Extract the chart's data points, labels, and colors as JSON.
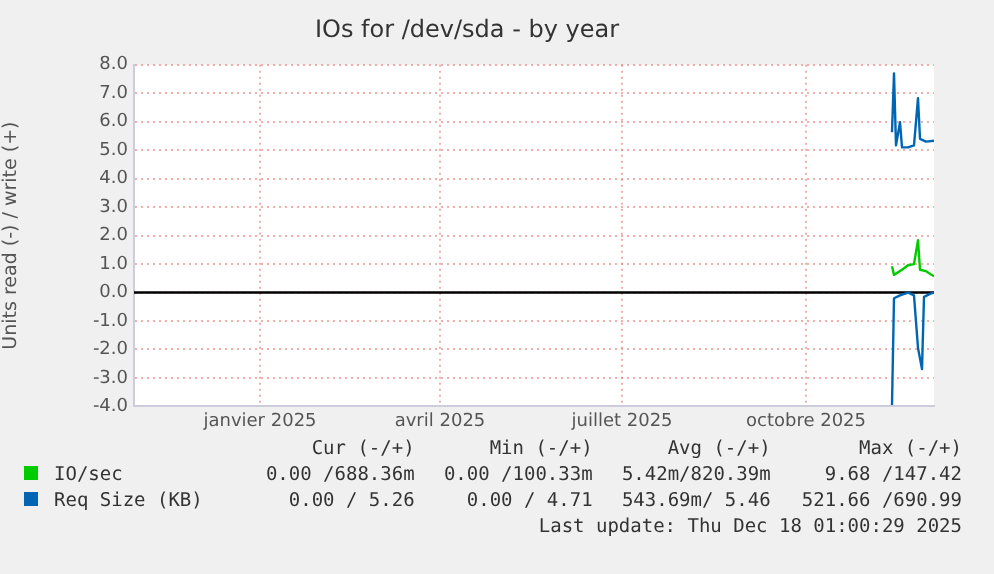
{
  "chart_data": {
    "type": "line",
    "title": "IOs for /dev/sda - by year",
    "ylabel": "Units read (-) / write (+)",
    "xlim": [
      "2024-11-13",
      "2025-12-18"
    ],
    "xticks": [
      {
        "value": "2025-01-15",
        "label": "janvier 2025"
      },
      {
        "value": "2025-04-15",
        "label": "avril 2025"
      },
      {
        "value": "2025-07-15",
        "label": "juillet 2025"
      },
      {
        "value": "2025-10-15",
        "label": "octobre 2025"
      }
    ],
    "ylim": [
      -4,
      8
    ],
    "yticks": [
      {
        "value": -4,
        "label": "-4.0"
      },
      {
        "value": -3,
        "label": "-3.0"
      },
      {
        "value": -2,
        "label": "-2.0"
      },
      {
        "value": -1,
        "label": "-1.0"
      },
      {
        "value": 0,
        "label": "0.0"
      },
      {
        "value": 1,
        "label": "1.0"
      },
      {
        "value": 2,
        "label": "2.0"
      },
      {
        "value": 3,
        "label": "3.0"
      },
      {
        "value": 4,
        "label": "4.0"
      },
      {
        "value": 5,
        "label": "5.0"
      },
      {
        "value": 6,
        "label": "6.0"
      },
      {
        "value": 7,
        "label": "7.0"
      },
      {
        "value": 8,
        "label": "8.0"
      }
    ],
    "grid": true,
    "legend": "bottom",
    "marker": "none",
    "line_style": "solid",
    "ref_lines": [
      {
        "axis": "y",
        "value": 0,
        "color": "#000000"
      }
    ],
    "series": [
      {
        "name": "IO/sec",
        "color": "#00cc00",
        "x": [
          "2025-11-27",
          "2025-11-28",
          "2025-12-02",
          "2025-12-05",
          "2025-12-08",
          "2025-12-10",
          "2025-12-11",
          "2025-12-14",
          "2025-12-18"
        ],
        "values": [
          0.92,
          0.62,
          0.8,
          0.96,
          1.0,
          1.84,
          0.8,
          0.75,
          0.57
        ]
      },
      {
        "name": "Req Size (KB)",
        "color": "#0066b3",
        "x": [
          "2025-11-27",
          "2025-11-28",
          "2025-11-29",
          "2025-12-01",
          "2025-12-02",
          "2025-12-05",
          "2025-12-08",
          "2025-12-10",
          "2025-12-11",
          "2025-12-14",
          "2025-12-18"
        ],
        "values": [
          5.63,
          7.7,
          5.17,
          5.98,
          5.1,
          5.1,
          5.17,
          6.83,
          5.4,
          5.3,
          5.33
        ]
      },
      {
        "color": "#0066b3",
        "x": [
          "2025-11-27",
          "2025-11-28",
          "2025-12-01",
          "2025-12-05",
          "2025-12-08",
          "2025-12-10",
          "2025-12-12",
          "2025-12-13",
          "2025-12-16",
          "2025-12-18"
        ],
        "values": [
          -3.95,
          -0.2,
          -0.1,
          0,
          -0.1,
          -1.95,
          -2.69,
          -0.15,
          -0.05,
          0
        ]
      }
    ],
    "annotations": [
      "Cur (-/+)",
      "Min (-/+)",
      "Avg (-/+)",
      "Max (-/+)",
      "0.00 /688.36m",
      "0.00 /100.33m",
      "5.42m/820.39m",
      "9.68 /147.42",
      "0.00 / 5.26",
      "0.00 / 4.71",
      "543.69m/ 5.46",
      "521.66 /690.99",
      "Last update: Thu Dec 18 01:00:29 2025"
    ]
  }
}
